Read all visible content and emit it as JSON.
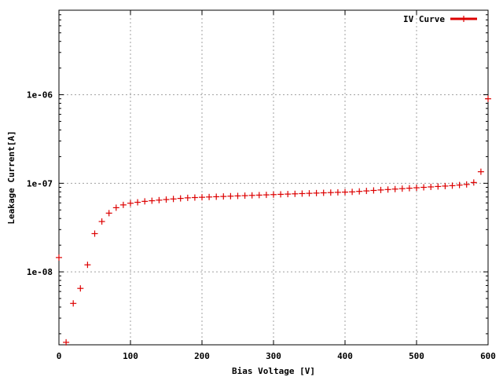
{
  "chart_data": {
    "type": "scatter",
    "xlabel": "Bias Voltage [V]",
    "ylabel": "Leakage Current[A]",
    "xlim": [
      0,
      600
    ],
    "ylim": [
      1.5e-09,
      9e-06
    ],
    "yscale": "log",
    "grid": true,
    "legend_position": "top-right",
    "x_ticks": [
      0,
      100,
      200,
      300,
      400,
      500,
      600
    ],
    "x_tick_labels": [
      "0",
      "100",
      "200",
      "300",
      "400",
      "500",
      "600"
    ],
    "y_ticks": [
      1e-08,
      1e-07,
      1e-06
    ],
    "y_tick_labels": [
      "1e-08",
      "1e-07",
      "1e-06"
    ],
    "series": [
      {
        "name": "IV Curve",
        "color": "#dd0000",
        "marker": "plus",
        "x": [
          0,
          10,
          20,
          30,
          40,
          50,
          60,
          70,
          80,
          90,
          100,
          110,
          120,
          130,
          140,
          150,
          160,
          170,
          180,
          190,
          200,
          210,
          220,
          230,
          240,
          250,
          260,
          270,
          280,
          290,
          300,
          310,
          320,
          330,
          340,
          350,
          360,
          370,
          380,
          390,
          400,
          410,
          420,
          430,
          440,
          450,
          460,
          470,
          480,
          490,
          500,
          510,
          520,
          530,
          540,
          550,
          560,
          570,
          580,
          590,
          600
        ],
        "y": [
          1.45e-08,
          1.6e-09,
          4.4e-09,
          6.5e-09,
          1.2e-08,
          2.7e-08,
          3.7e-08,
          4.6e-08,
          5.3e-08,
          5.7e-08,
          5.95e-08,
          6.1e-08,
          6.25e-08,
          6.35e-08,
          6.45e-08,
          6.55e-08,
          6.65e-08,
          6.75e-08,
          6.85e-08,
          6.9e-08,
          6.95e-08,
          7e-08,
          7.05e-08,
          7.1e-08,
          7.15e-08,
          7.2e-08,
          7.25e-08,
          7.3e-08,
          7.35e-08,
          7.4e-08,
          7.45e-08,
          7.5e-08,
          7.55e-08,
          7.6e-08,
          7.65e-08,
          7.7e-08,
          7.75e-08,
          7.8e-08,
          7.85e-08,
          7.9e-08,
          7.95e-08,
          8e-08,
          8.1e-08,
          8.2e-08,
          8.3e-08,
          8.4e-08,
          8.5e-08,
          8.6e-08,
          8.7e-08,
          8.8e-08,
          8.9e-08,
          9e-08,
          9.1e-08,
          9.2e-08,
          9.3e-08,
          9.4e-08,
          9.55e-08,
          9.7e-08,
          1.02e-07,
          1.35e-07,
          9e-07
        ]
      }
    ]
  }
}
